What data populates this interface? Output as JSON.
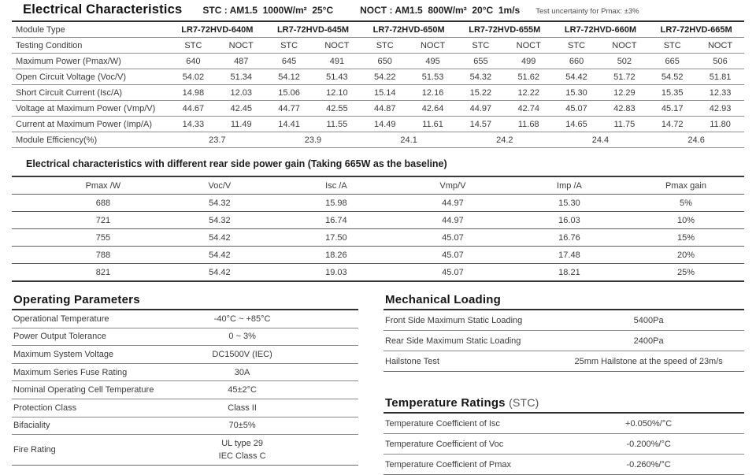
{
  "header": {
    "title": "Electrical Characteristics",
    "stc": "STC : AM1.5  1000W/m²  25°C",
    "noct": "NOCT : AM1.5  800W/m²  20°C  1m/s",
    "uncertainty": "Test uncertainty for Pmax: ±3%"
  },
  "ec_table": {
    "module_type_label": "Module Type",
    "testing_condition_label": "Testing Condition",
    "condition_headers": [
      "STC",
      "NOCT"
    ],
    "modules": [
      "LR7-72HVD-640M",
      "LR7-72HVD-645M",
      "LR7-72HVD-650M",
      "LR7-72HVD-655M",
      "LR7-72HVD-660M",
      "LR7-72HVD-665M"
    ],
    "rows": [
      {
        "label": "Maximum Power (Pmax/W)",
        "values": [
          "640",
          "487",
          "645",
          "491",
          "650",
          "495",
          "655",
          "499",
          "660",
          "502",
          "665",
          "506"
        ]
      },
      {
        "label": "Open Circuit Voltage (Voc/V)",
        "values": [
          "54.02",
          "51.34",
          "54.12",
          "51.43",
          "54.22",
          "51.53",
          "54.32",
          "51.62",
          "54.42",
          "51.72",
          "54.52",
          "51.81"
        ]
      },
      {
        "label": "Short Circuit Current (Isc/A)",
        "values": [
          "14.98",
          "12.03",
          "15.06",
          "12.10",
          "15.14",
          "12.16",
          "15.22",
          "12.22",
          "15.30",
          "12.29",
          "15.35",
          "12.33"
        ]
      },
      {
        "label": "Voltage at Maximum Power (Vmp/V)",
        "values": [
          "44.67",
          "42.45",
          "44.77",
          "42.55",
          "44.87",
          "42.64",
          "44.97",
          "42.74",
          "45.07",
          "42.83",
          "45.17",
          "42.93"
        ]
      },
      {
        "label": "Current at Maximum Power (Imp/A)",
        "values": [
          "14.33",
          "11.49",
          "14.41",
          "11.55",
          "14.49",
          "11.61",
          "14.57",
          "11.68",
          "14.65",
          "11.75",
          "14.72",
          "11.80"
        ]
      }
    ],
    "efficiency_row": {
      "label": "Module Efficiency(%)",
      "values": [
        "23.7",
        "23.9",
        "24.1",
        "24.2",
        "24.4",
        "24.6"
      ]
    }
  },
  "rear_gain_table": {
    "title": "Electrical characteristics with different rear side power gain (Taking 665W as the baseline)",
    "headers": [
      "Pmax /W",
      "Voc/V",
      "Isc /A",
      "Vmp/V",
      "Imp /A",
      "Pmax gain"
    ],
    "rows": [
      [
        "688",
        "54.32",
        "15.98",
        "44.97",
        "15.30",
        "5%"
      ],
      [
        "721",
        "54.32",
        "16.74",
        "44.97",
        "16.03",
        "10%"
      ],
      [
        "755",
        "54.42",
        "17.50",
        "45.07",
        "16.76",
        "15%"
      ],
      [
        "788",
        "54.42",
        "18.26",
        "45.07",
        "17.48",
        "20%"
      ],
      [
        "821",
        "54.42",
        "19.03",
        "45.07",
        "18.21",
        "25%"
      ]
    ]
  },
  "operating_parameters": {
    "title": "Operating Parameters",
    "rows": [
      {
        "label": "Operational Temperature",
        "value": "-40°C ~ +85°C"
      },
      {
        "label": "Power Output Tolerance",
        "value": "0 ~ 3%"
      },
      {
        "label": "Maximum System Voltage",
        "value": "DC1500V (IEC)"
      },
      {
        "label": "Maximum Series Fuse Rating",
        "value": "30A"
      },
      {
        "label": "Nominal Operating Cell Temperature",
        "value": "45±2°C"
      },
      {
        "label": "Protection Class",
        "value": "Class II"
      },
      {
        "label": "Bifaciality",
        "value": "70±5%"
      },
      {
        "label": "Fire Rating",
        "value": "UL type 29",
        "value2": "IEC Class C"
      }
    ]
  },
  "mechanical_loading": {
    "title": "Mechanical Loading",
    "rows": [
      {
        "label": "Front Side Maximum Static Loading",
        "value": "5400Pa"
      },
      {
        "label": "Rear Side Maximum Static Loading",
        "value": "2400Pa"
      },
      {
        "label": "Hailstone Test",
        "value": "25mm Hailstone at the speed of 23m/s"
      }
    ]
  },
  "temperature_ratings": {
    "title": "Temperature Ratings",
    "subtitle": "(STC)",
    "rows": [
      {
        "label": "Temperature Coefficient of Isc",
        "value": "+0.050%/°C"
      },
      {
        "label": "Temperature Coefficient of Voc",
        "value": "-0.200%/°C"
      },
      {
        "label": "Temperature Coefficient of Pmax",
        "value": "-0.260%/°C"
      }
    ]
  },
  "colors": {
    "heading_text": "#161616",
    "body_text": "#3b3b3b",
    "rule_dark": "#2e2e2e",
    "rule_light": "#8a8a8a"
  }
}
